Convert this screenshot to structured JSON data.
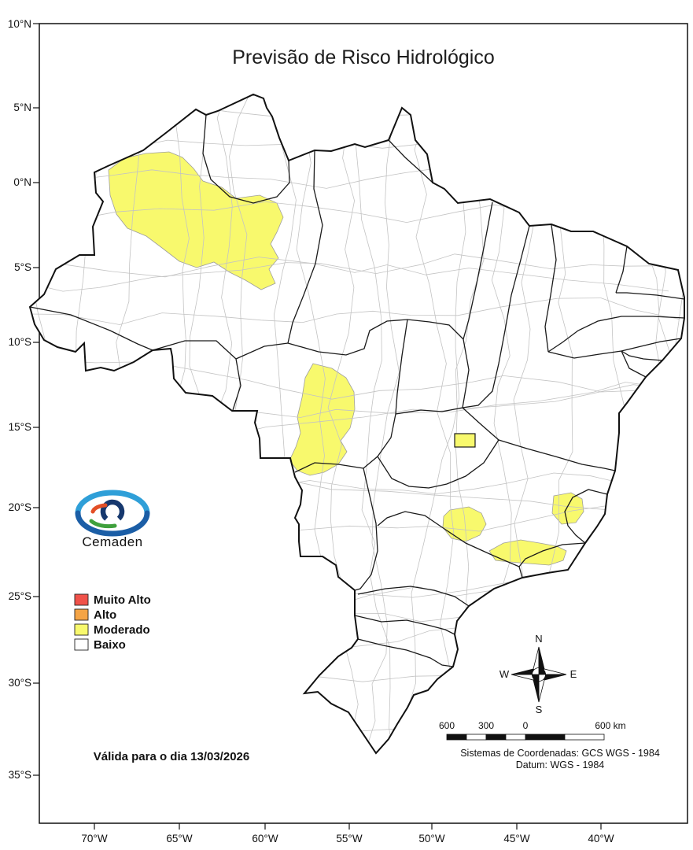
{
  "title": "Previsão de Risco Hidrológico",
  "axes": {
    "lat": [
      "10°N",
      "5°N",
      "0°N",
      "5°S",
      "10°S",
      "15°S",
      "20°S",
      "25°S",
      "30°S",
      "35°S"
    ],
    "lon": [
      "70°W",
      "65°W",
      "60°W",
      "55°W",
      "50°W",
      "45°W",
      "40°W"
    ]
  },
  "legend": {
    "items": [
      {
        "label": "Muito Alto",
        "color": "#f0524a"
      },
      {
        "label": "Alto",
        "color": "#f4a445"
      },
      {
        "label": "Moderado",
        "color": "#f8f96d"
      },
      {
        "label": "Baixo",
        "color": "#ffffff"
      }
    ]
  },
  "colors": {
    "country_outline": "#111111",
    "state_line": "#1a1a1a",
    "municipality_line": "#c3c3c3",
    "background": "#ffffff"
  },
  "logo": {
    "text": "Cemaden",
    "color": "#2a9bd0"
  },
  "validity": "Válida para o dia 13/03/2026",
  "compass": {
    "n": "N",
    "e": "E",
    "s": "S",
    "w": "W"
  },
  "scalebar": {
    "labels": [
      "600",
      "300",
      "0",
      "600 km"
    ]
  },
  "footer": {
    "coord_system": "Sistemas de Coordenadas: GCS WGS - 1984",
    "datum": "Datum: WGS - 1984"
  }
}
